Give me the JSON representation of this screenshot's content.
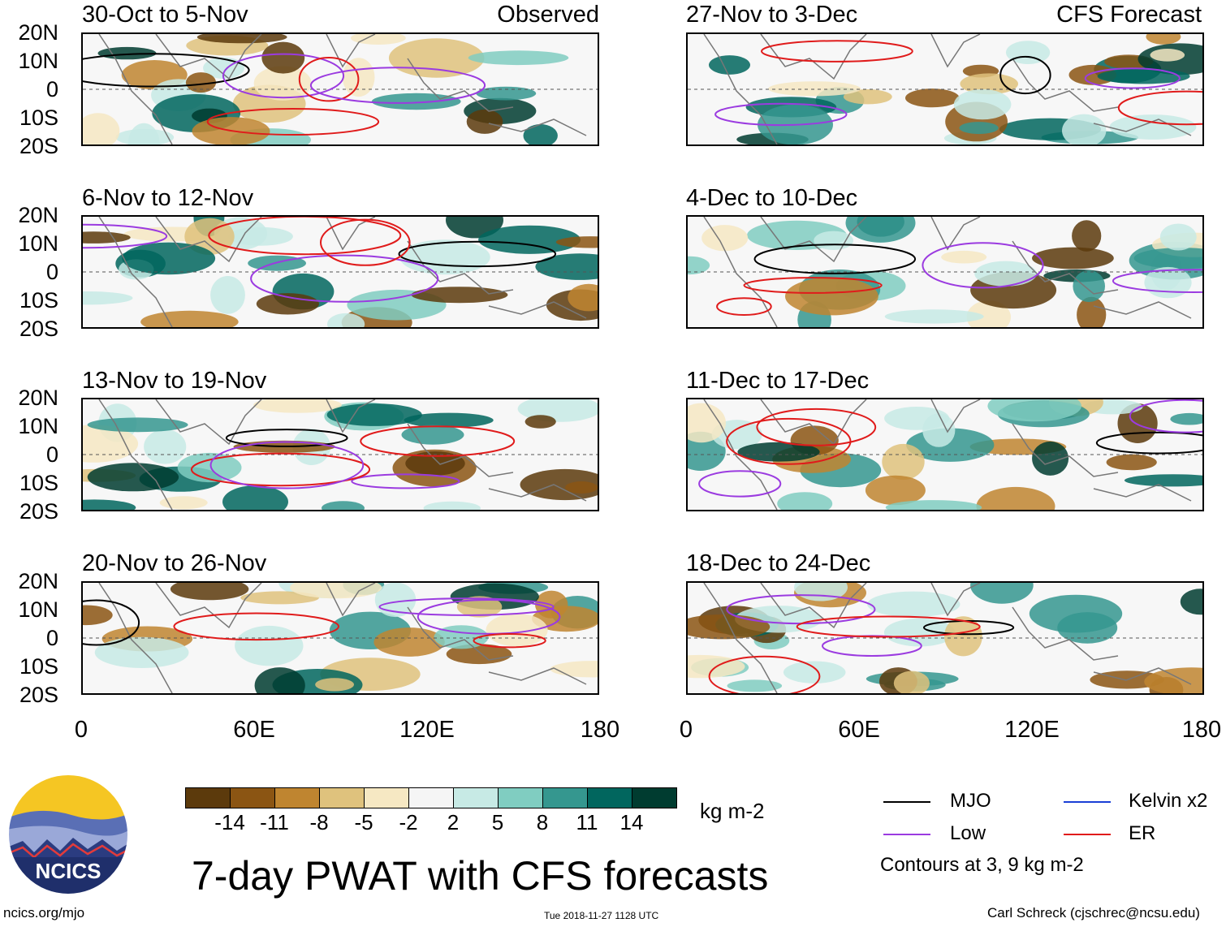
{
  "panels_left": [
    {
      "title": "30-Oct to 5-Nov",
      "label": "Observed"
    },
    {
      "title": "6-Nov to 12-Nov",
      "label": ""
    },
    {
      "title": "13-Nov to 19-Nov",
      "label": ""
    },
    {
      "title": "20-Nov to 26-Nov",
      "label": ""
    }
  ],
  "panels_right": [
    {
      "title": "27-Nov to 3-Dec",
      "label": "CFS Forecast"
    },
    {
      "title": "4-Dec to 10-Dec",
      "label": ""
    },
    {
      "title": "11-Dec to 17-Dec",
      "label": ""
    },
    {
      "title": "18-Dec to 24-Dec",
      "label": ""
    }
  ],
  "y_axis_labels": [
    "20N",
    "10N",
    "0",
    "10S",
    "20S"
  ],
  "x_axis_labels": [
    "0",
    "60E",
    "120E",
    "180"
  ],
  "colorbar": {
    "colors": [
      "#5c3a0c",
      "#8b5513",
      "#bf8530",
      "#dfc27d",
      "#f6e8c3",
      "#f5f5f5",
      "#c7eae5",
      "#80cdc1",
      "#35978f",
      "#01665e",
      "#003c30"
    ],
    "tick_labels": [
      "-14",
      "-11",
      "-8",
      "-5",
      "-2",
      "2",
      "5",
      "8",
      "11",
      "14"
    ],
    "unit": "kg m-2"
  },
  "main_title": "7-day PWAT with CFS forecasts",
  "legend": {
    "items": [
      {
        "label": "MJO",
        "color": "#000000"
      },
      {
        "label": "Kelvin x2",
        "color": "#1a3fd6"
      },
      {
        "label": "Low",
        "color": "#9b3be0"
      },
      {
        "label": "ER",
        "color": "#e01b1b"
      }
    ],
    "note": "Contours at 3, 9 kg m-2"
  },
  "logo": {
    "text": "NCICS"
  },
  "footer": {
    "url": "ncics.org/mjo",
    "timestamp": "Tue 2018-11-27 1128 UTC",
    "credit": "Carl Schreck (cjschrec@ncsu.edu)"
  }
}
